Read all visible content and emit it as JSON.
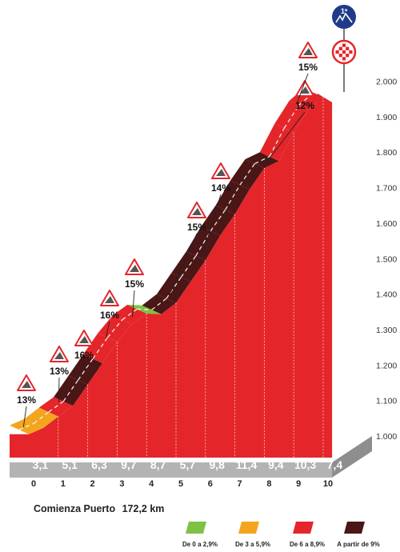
{
  "chart_data": {
    "type": "area",
    "title": "",
    "xlabel": "",
    "ylabel": "",
    "x_ticks": [
      "0",
      "1",
      "2",
      "3",
      "4",
      "5",
      "6",
      "7",
      "8",
      "9",
      "10"
    ],
    "y_ticks": [
      "1.000",
      "1.100",
      "1.200",
      "1.300",
      "1.400",
      "1.500",
      "1.600",
      "1.700",
      "1.800",
      "1.900",
      "2.000"
    ],
    "ylim": [
      1000,
      2000
    ],
    "xlim": [
      0,
      11
    ],
    "segments": [
      {
        "from_km": 0,
        "to_km": 0.5,
        "percent": "13%",
        "category": "3-5.9"
      },
      {
        "from_km": 0.5,
        "to_km": 1,
        "percent": "13%",
        "category": "3-5.9"
      },
      {
        "from_km": 1,
        "to_km": 1.5,
        "percent": "16%",
        "category": "6-8.9"
      },
      {
        "from_km": 1.5,
        "to_km": 2,
        "percent": "16%",
        "category": "9+"
      },
      {
        "from_km": 2,
        "to_km": 2.5,
        "percent": "16%",
        "category": "9+"
      },
      {
        "from_km": 2.5,
        "to_km": 3,
        "percent": "16%",
        "category": "6-8.9"
      },
      {
        "from_km": 3,
        "to_km": 3.5,
        "percent": "15%",
        "category": "6-8.9"
      },
      {
        "from_km": 3.5,
        "to_km": 4,
        "percent": "15%",
        "category": "6-8.9"
      },
      {
        "from_km": 4,
        "to_km": 4.5,
        "percent": "15%",
        "category": "0-2.9"
      },
      {
        "from_km": 4.5,
        "to_km": 5,
        "percent": "15%",
        "category": "9+"
      },
      {
        "from_km": 5,
        "to_km": 5.5,
        "percent": "15%",
        "category": "9+"
      },
      {
        "from_km": 5.5,
        "to_km": 6,
        "percent": "15%",
        "category": "9+"
      },
      {
        "from_km": 6,
        "to_km": 6.5,
        "percent": "14%",
        "category": "9+"
      },
      {
        "from_km": 6.5,
        "to_km": 7,
        "percent": "14%",
        "category": "9+"
      },
      {
        "from_km": 7,
        "to_km": 7.5,
        "percent": "14%",
        "category": "9+"
      },
      {
        "from_km": 7.5,
        "to_km": 8,
        "percent": "14%",
        "category": "9+"
      },
      {
        "from_km": 8,
        "to_km": 8.5,
        "percent": "12%",
        "category": "9+"
      },
      {
        "from_km": 8.5,
        "to_km": 9,
        "percent": "12%",
        "category": "6-8.9"
      },
      {
        "from_km": 9,
        "to_km": 9.5,
        "percent": "15%",
        "category": "6-8.9"
      },
      {
        "from_km": 9.5,
        "to_km": 10.0,
        "percent": "15%",
        "category": "6-8.9"
      }
    ],
    "profile": [
      {
        "km": 0,
        "alt": 1030
      },
      {
        "km": 0.5,
        "alt": 1048
      },
      {
        "km": 1,
        "alt": 1080
      },
      {
        "km": 1.5,
        "alt": 1110
      },
      {
        "km": 2,
        "alt": 1170
      },
      {
        "km": 2.5,
        "alt": 1230
      },
      {
        "km": 3,
        "alt": 1290
      },
      {
        "km": 3.5,
        "alt": 1340
      },
      {
        "km": 4,
        "alt": 1370
      },
      {
        "km": 4.5,
        "alt": 1368
      },
      {
        "km": 5,
        "alt": 1400
      },
      {
        "km": 5.5,
        "alt": 1460
      },
      {
        "km": 6,
        "alt": 1520
      },
      {
        "km": 6.5,
        "alt": 1590
      },
      {
        "km": 7,
        "alt": 1650
      },
      {
        "km": 7.5,
        "alt": 1720
      },
      {
        "km": 8,
        "alt": 1780
      },
      {
        "km": 8.5,
        "alt": 1800
      },
      {
        "km": 9,
        "alt": 1880
      },
      {
        "km": 9.5,
        "alt": 1945
      },
      {
        "km": 10,
        "alt": 1980
      },
      {
        "km": 10.3,
        "alt": 1965
      }
    ],
    "km_avg_gradients": [
      "3,1",
      "5,1",
      "6,3",
      "9,7",
      "8,7",
      "5,7",
      "9,8",
      "11,4",
      "9,4",
      "10,3",
      "7,4"
    ],
    "gradient_callouts": [
      {
        "km": 0.2,
        "alt": 1030,
        "label": "13%"
      },
      {
        "km": 1.4,
        "alt": 1100,
        "label": "13%"
      },
      {
        "km": 2.0,
        "alt": 1160,
        "label": "16%"
      },
      {
        "km": 3.0,
        "alt": 1280,
        "label": "16%"
      },
      {
        "km": 3.9,
        "alt": 1340,
        "label": "15%"
      },
      {
        "km": 5.2,
        "alt": 1410,
        "label": "15%"
      },
      {
        "km": 6.3,
        "alt": 1520,
        "label": "14%"
      },
      {
        "km": 8.4,
        "alt": 1770,
        "label": "12%"
      },
      {
        "km": 9.5,
        "alt": 1945,
        "label": "15%"
      }
    ],
    "legend": [
      {
        "label": "De 0 a 2,9%",
        "color": "#7dc243",
        "category": "0-2.9"
      },
      {
        "label": "De 3 a 5,9%",
        "color": "#f3a51d",
        "category": "3-5.9"
      },
      {
        "label": "De 6 a 8,9%",
        "color": "#e4262b",
        "category": "6-8.9"
      },
      {
        "label": "A partir de 9%",
        "color": "#4a1716",
        "category": "9+"
      }
    ],
    "legend_placement": "bottom-right",
    "grid": false
  },
  "start_label": "Comienza Puerto",
  "start_km": "172,2 km",
  "category_badge": "1ª",
  "colors": {
    "face": "#e4262b",
    "side": "#c51e23",
    "base": "#b3b3b3",
    "base_dark": "#8e8e8e",
    "text": "#222222",
    "badge_blue": "#1f3a8a"
  }
}
